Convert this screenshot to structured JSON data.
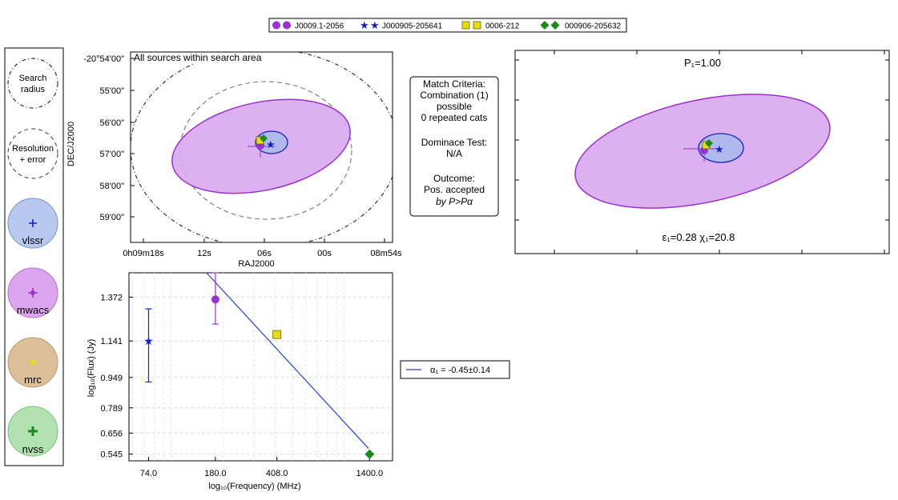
{
  "legend": {
    "entries": [
      {
        "label": "J0009.1-2056",
        "marker": "circle",
        "color": "#9b30d0"
      },
      {
        "label": "J000905-205641",
        "marker": "star",
        "color": "#1020c8"
      },
      {
        "label": "0006-212",
        "marker": "square",
        "color": "#e8dc10"
      },
      {
        "label": "000906-205632",
        "marker": "diamond",
        "color": "#1a8a1a"
      }
    ]
  },
  "key_panel": {
    "items": [
      {
        "label_lines": [
          "Search",
          "radius"
        ],
        "style": "dashdot-circle"
      },
      {
        "label_lines": [
          "Resolution",
          "+ error"
        ],
        "style": "dashed-circle"
      },
      {
        "label": "vlssr",
        "fill": "#b8c8ee",
        "marker_color": "#1020c8"
      },
      {
        "label": "mwacs",
        "fill": "#dba6ee",
        "marker_color": "#9b30d0"
      },
      {
        "label": "mrc",
        "fill": "#dcbf98",
        "marker_color": "#e8dc10"
      },
      {
        "label": "nvss",
        "fill": "#b2e2b0",
        "marker_color": "#1a8a1a"
      }
    ]
  },
  "match_text": {
    "lines": [
      "Match Criteria:",
      "Combination (1)",
      "possible",
      "0 repeated cats",
      "",
      "Dominace Test:",
      "N/A",
      "",
      "Outcome:",
      "Pos. accepted",
      "by P>Pα"
    ]
  },
  "fit_legend": {
    "label": "α₁ = -0.45±0.14",
    "color": "#2040e0"
  },
  "chart_data": [
    {
      "type": "scatter",
      "title": "All sources within search area",
      "xlabel": "RAJ2000",
      "ylabel": "DEC/J2000",
      "x_ticks": [
        "0h09m18s",
        "12s",
        "06s",
        "00s",
        "08m54s"
      ],
      "y_ticks": [
        "-20°54'00\"",
        "55'00\"",
        "56'00\"",
        "57'00\"",
        "58'00\"",
        "59'00\""
      ],
      "ellipses": [
        {
          "name": "search radius",
          "style": "dashdot"
        },
        {
          "name": "resolution + error",
          "style": "dashed"
        },
        {
          "name": "mwacs",
          "color": "#9b30d0"
        },
        {
          "name": "vlssr",
          "color": "#1020c8"
        }
      ],
      "points": [
        {
          "source": "J0009.1-2056",
          "marker": "circle"
        },
        {
          "source": "J000905-205641",
          "marker": "star"
        },
        {
          "source": "0006-212",
          "marker": "square"
        },
        {
          "source": "000906-205632",
          "marker": "diamond"
        }
      ]
    },
    {
      "type": "scatter",
      "title": "P₁=1.00",
      "annotation": "ε₁=0.28 χ₁=20.8",
      "points": [
        {
          "source": "J0009.1-2056",
          "marker": "circle"
        },
        {
          "source": "J000905-205641",
          "marker": "star"
        },
        {
          "source": "0006-212",
          "marker": "square"
        },
        {
          "source": "000906-205632",
          "marker": "diamond"
        }
      ]
    },
    {
      "type": "scatter",
      "xlabel": "log₁₀(Frequency) (MHz)",
      "ylabel": "log₁₀(Flux) (Jy)",
      "x_ticks": [
        74.0,
        180.0,
        408.0,
        1400.0
      ],
      "y_ticks": [
        0.545,
        0.656,
        0.789,
        0.949,
        1.141,
        1.372
      ],
      "xlim": [
        57,
        1900
      ],
      "ylim": [
        0.51,
        1.5
      ],
      "points": [
        {
          "source": "J000905-205641",
          "catalog": "vlssr",
          "marker": "star",
          "freq": 74,
          "flux": 1.141,
          "err_lo": 0.925,
          "err_hi": 1.31
        },
        {
          "source": "J0009.1-2056",
          "catalog": "mwacs",
          "marker": "circle",
          "freq": 180,
          "flux": 1.36,
          "err_lo": 1.23,
          "err_hi": 1.5
        },
        {
          "source": "0006-212",
          "catalog": "mrc",
          "marker": "square",
          "freq": 408,
          "flux": 1.175
        },
        {
          "source": "000906-205632",
          "catalog": "nvss",
          "marker": "diamond",
          "freq": 1400,
          "flux": 0.545
        }
      ],
      "fit_line": {
        "x": [
          160,
          1380
        ],
        "y": [
          1.5,
          0.575
        ]
      }
    }
  ]
}
